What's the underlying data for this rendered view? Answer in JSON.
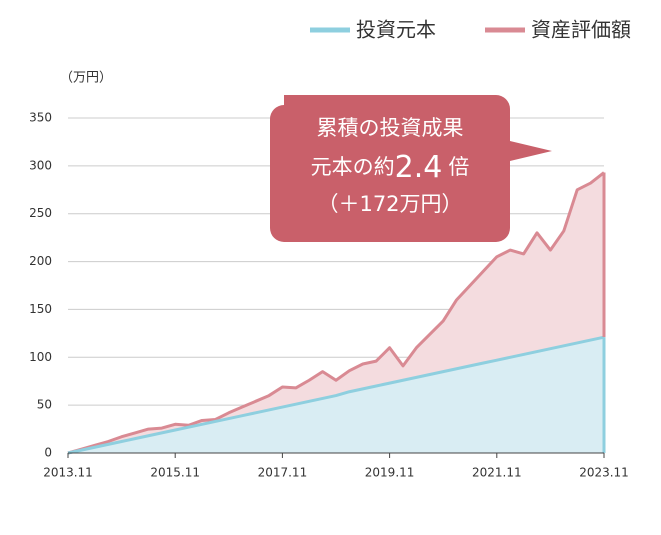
{
  "chart_data": {
    "type": "area",
    "y_unit": "（万円）",
    "x": [
      "2013.11",
      "2014.02",
      "2014.05",
      "2014.08",
      "2014.11",
      "2015.02",
      "2015.05",
      "2015.08",
      "2015.11",
      "2016.02",
      "2016.05",
      "2016.08",
      "2016.11",
      "2017.02",
      "2017.05",
      "2017.08",
      "2017.11",
      "2018.02",
      "2018.05",
      "2018.08",
      "2018.11",
      "2019.02",
      "2019.05",
      "2019.08",
      "2019.11",
      "2020.02",
      "2020.05",
      "2020.08",
      "2020.11",
      "2021.02",
      "2021.05",
      "2021.08",
      "2021.11",
      "2022.02",
      "2022.05",
      "2022.08",
      "2022.11",
      "2023.02",
      "2023.05",
      "2023.08",
      "2023.11"
    ],
    "series": [
      {
        "name": "資産評価額",
        "color": "#d98a93",
        "fill": "#f4dcdf",
        "values": [
          0,
          4,
          8,
          12,
          17,
          21,
          25,
          26,
          30,
          29,
          34,
          35,
          42,
          48,
          54,
          60,
          69,
          68,
          76,
          85,
          76,
          86,
          93,
          96,
          110,
          91,
          110,
          124,
          138,
          160,
          175,
          190,
          205,
          212,
          208,
          230,
          212,
          232,
          275,
          282,
          293
        ]
      },
      {
        "name": "投資元本",
        "color": "#8ecfdf",
        "fill": "#d9edf3",
        "values": [
          0,
          3,
          6,
          9,
          12,
          15,
          18,
          21,
          24,
          27,
          30,
          33,
          36,
          39,
          42,
          45,
          48,
          51,
          54,
          57,
          60,
          64,
          67,
          70,
          73,
          76,
          79,
          82,
          85,
          88,
          91,
          94,
          97,
          100,
          103,
          106,
          109,
          112,
          115,
          118,
          121
        ]
      }
    ],
    "ylim": [
      0,
      350
    ],
    "yticks": [
      0,
      50,
      100,
      150,
      200,
      250,
      300,
      350
    ],
    "grid": true,
    "annotation": {
      "line1": "累積の投資成果",
      "line2_prefix": "元本の約",
      "multiple": 2.4,
      "line2_suffix": "倍",
      "line3": "（＋172万円）",
      "color": "#c9606a"
    }
  }
}
